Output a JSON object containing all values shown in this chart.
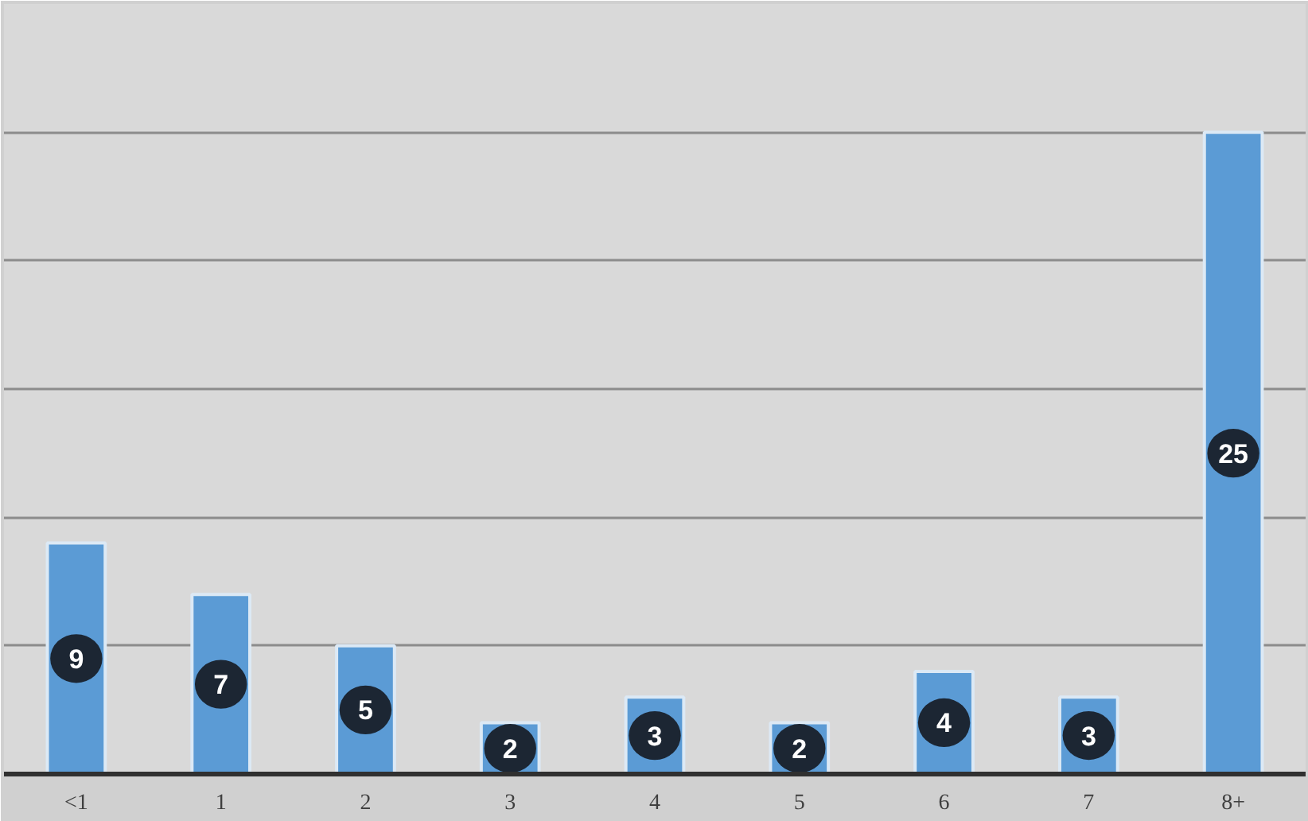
{
  "chart_data": {
    "type": "bar",
    "categories": [
      "<1",
      "1",
      "2",
      "3",
      "4",
      "5",
      "6",
      "7",
      "8+"
    ],
    "values": [
      9,
      7,
      5,
      2,
      3,
      2,
      4,
      3,
      25
    ],
    "color": "#5b9bd5",
    "ylim": [
      0,
      30
    ],
    "yticks": [
      {
        "value": 0,
        "label": null
      },
      {
        "value": 5,
        "label": null
      },
      {
        "value": 10,
        "label": null
      },
      {
        "value": 15,
        "label": null
      },
      {
        "value": 20,
        "label": null
      },
      {
        "value": 25,
        "label": null
      }
    ],
    "tick_labels": "x",
    "grid": "y",
    "data_labels": true
  }
}
